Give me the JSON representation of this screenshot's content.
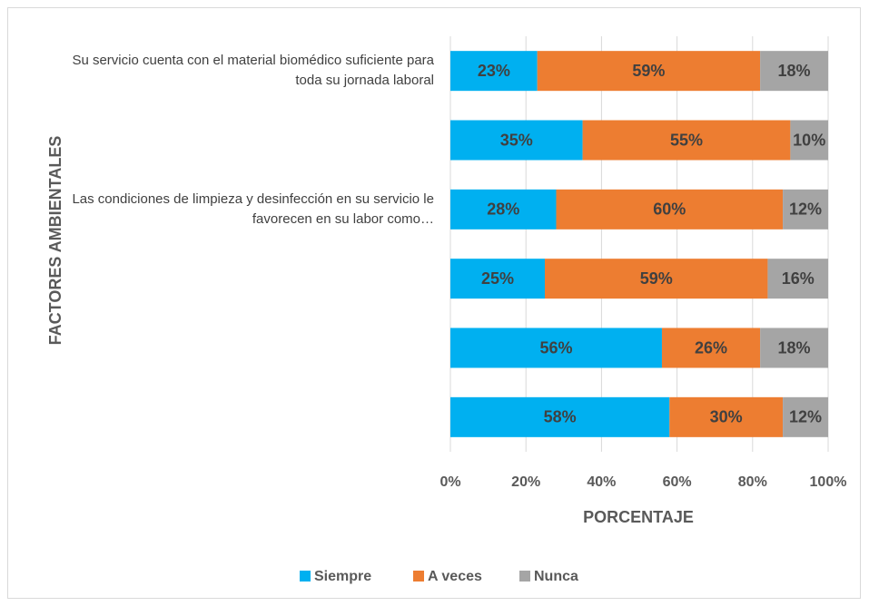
{
  "chart_data": {
    "type": "stacked_barh",
    "x_label": "PORCENTAJE",
    "y_label": "FACTORES AMBIENTALES",
    "categories": [
      "Su servicio cuenta con el material biomédico suficiente para toda su jornada laboral",
      null,
      "Las condiciones de limpieza y desinfección en su servicio le favorecen en su labor como…",
      null,
      null,
      null
    ],
    "series": [
      {
        "name": "Siempre",
        "color": "#00b0f0",
        "values": [
          23,
          35,
          28,
          25,
          56,
          58
        ],
        "value_labels": [
          "23%",
          "35%",
          "28%",
          "25%",
          "56%",
          "58%"
        ]
      },
      {
        "name": "A veces",
        "color": "#ed7d31",
        "values": [
          59,
          55,
          60,
          59,
          26,
          30
        ],
        "value_labels": [
          "59%",
          "55%",
          "60%",
          "59%",
          "26%",
          "30%"
        ]
      },
      {
        "name": "Nunca",
        "color": "#a5a5a5",
        "values": [
          18,
          10,
          12,
          16,
          18,
          12
        ],
        "value_labels": [
          "18%",
          "10%",
          "12%",
          "16%",
          "18%",
          "12%"
        ]
      }
    ],
    "xlim": [
      0,
      100
    ],
    "xticks": [
      {
        "value": 0,
        "label": "0%"
      },
      {
        "value": 20,
        "label": "20%"
      },
      {
        "value": 40,
        "label": "40%"
      },
      {
        "value": 60,
        "label": "60%"
      },
      {
        "value": 80,
        "label": "80%"
      },
      {
        "value": 100,
        "label": "100%"
      }
    ],
    "grid": true,
    "legend": "bottom"
  }
}
